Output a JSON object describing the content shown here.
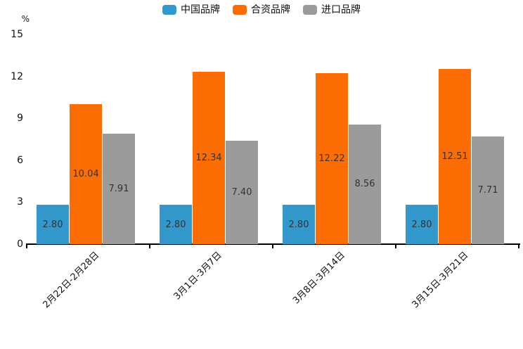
{
  "chart_data": {
    "type": "bar",
    "title": "",
    "xlabel": "",
    "ylabel": "%",
    "ylim": [
      0,
      15
    ],
    "y_ticks": [
      0,
      3,
      6,
      9,
      12,
      15
    ],
    "grid": false,
    "legend_position": "top",
    "value_label_decimals": 2,
    "categories": [
      "2月22日-2月28日",
      "3月1日-3月7日",
      "3月8日-3月14日",
      "3月15日-3月21日"
    ],
    "series": [
      {
        "name": "中国品牌",
        "color": "#3398cb",
        "values": [
          2.8,
          2.8,
          2.8,
          2.8
        ]
      },
      {
        "name": "合资品牌",
        "color": "#fc6d04",
        "values": [
          10.04,
          12.34,
          12.22,
          12.51
        ]
      },
      {
        "name": "进口品牌",
        "color": "#9b9b9b",
        "values": [
          7.91,
          7.4,
          8.56,
          7.71
        ]
      }
    ],
    "colors": {
      "axis": "#000000",
      "tick_text": "#111111",
      "bar_value_text": "#333333",
      "background": "#ffffff"
    }
  }
}
